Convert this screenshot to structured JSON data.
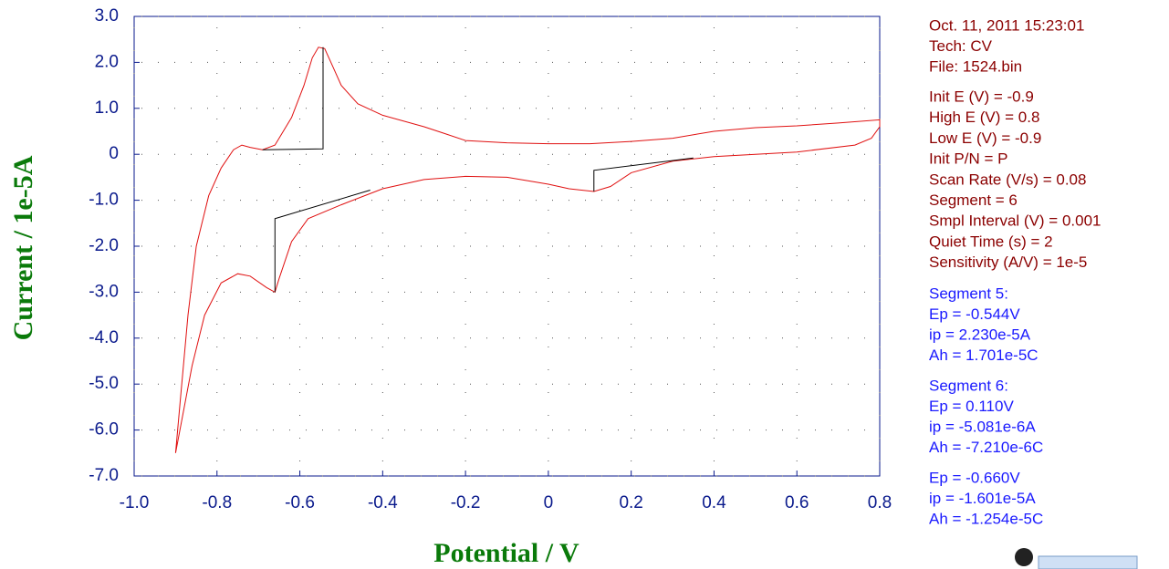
{
  "chart_data": {
    "type": "line",
    "x_label": "Potential / V",
    "y_label": "Current / 1e-5A",
    "xlim": [
      -1.0,
      0.8
    ],
    "ylim": [
      -7.0,
      3.0
    ],
    "xticks": [
      {
        "value": -1.0,
        "label": "-1.0"
      },
      {
        "value": -0.8,
        "label": "-0.8"
      },
      {
        "value": -0.6,
        "label": "-0.6"
      },
      {
        "value": -0.4,
        "label": "-0.4"
      },
      {
        "value": -0.2,
        "label": "-0.2"
      },
      0,
      {
        "value": 0.2,
        "label": "0.2"
      },
      {
        "value": 0.4,
        "label": "0.4"
      },
      {
        "value": 0.6,
        "label": "0.6"
      },
      {
        "value": 0.8,
        "label": "0.8"
      }
    ],
    "yticks": [
      {
        "value": 3.0,
        "label": "3.0"
      },
      {
        "value": 2.0,
        "label": "2.0"
      },
      {
        "value": 1.0,
        "label": "1.0"
      },
      0,
      {
        "value": -1.0,
        "label": "-1.0"
      },
      {
        "value": -2.0,
        "label": "-2.0"
      },
      {
        "value": -3.0,
        "label": "-3.0"
      },
      {
        "value": -4.0,
        "label": "-4.0"
      },
      {
        "value": -5.0,
        "label": "-5.0"
      },
      {
        "value": -6.0,
        "label": "-6.0"
      },
      {
        "value": -7.0,
        "label": "-7.0"
      }
    ],
    "grid": true,
    "series": [
      {
        "color": "#e01010",
        "x": [
          -0.9,
          -0.89,
          -0.87,
          -0.85,
          -0.82,
          -0.79,
          -0.76,
          -0.74,
          -0.72,
          -0.69,
          -0.66,
          -0.62,
          -0.59,
          -0.57,
          -0.555,
          -0.54,
          -0.52,
          -0.5,
          -0.46,
          -0.4,
          -0.3,
          -0.25,
          -0.2,
          -0.1,
          0,
          0.1,
          0.2,
          0.3,
          0.4,
          0.5,
          0.6,
          0.7,
          0.8,
          0.8,
          0.78,
          0.74,
          0.6,
          0.4,
          0.3,
          0.2,
          0.15,
          0.11,
          0.05,
          0,
          -0.1,
          -0.2,
          -0.3,
          -0.4,
          -0.5,
          -0.58,
          -0.62,
          -0.65,
          -0.66,
          -0.68,
          -0.72,
          -0.75,
          -0.79,
          -0.83,
          -0.86,
          -0.9
        ],
        "values": [
          -6.5,
          -5.5,
          -3.5,
          -2.0,
          -0.9,
          -0.3,
          0.1,
          0.2,
          0.15,
          0.1,
          0.2,
          0.8,
          1.5,
          2.1,
          2.33,
          2.3,
          1.9,
          1.5,
          1.1,
          0.85,
          0.6,
          0.45,
          0.3,
          0.25,
          0.23,
          0.23,
          0.28,
          0.35,
          0.5,
          0.58,
          0.62,
          0.68,
          0.75,
          0.6,
          0.35,
          0.2,
          0.05,
          -0.05,
          -0.15,
          -0.4,
          -0.7,
          -0.81,
          -0.75,
          -0.65,
          -0.5,
          -0.48,
          -0.55,
          -0.75,
          -1.1,
          -1.4,
          -1.9,
          -2.7,
          -3.0,
          -2.9,
          -2.65,
          -2.6,
          -2.8,
          -3.5,
          -4.6,
          -6.5
        ]
      },
      {
        "color": "#000000",
        "x": [
          -0.69,
          -0.544,
          -0.544
        ],
        "values": [
          0.1,
          0.12,
          2.33
        ]
      },
      {
        "color": "#000000",
        "x": [
          0.11,
          0.11,
          0.35
        ],
        "values": [
          -0.81,
          -0.35,
          -0.08
        ]
      },
      {
        "color": "#000000",
        "x": [
          -0.66,
          -0.66,
          -0.43
        ],
        "values": [
          -3.0,
          -1.4,
          -0.78
        ]
      }
    ]
  },
  "info": {
    "header": [
      "Oct. 11, 2011   15:23:01",
      "Tech: CV",
      "File: 1524.bin"
    ],
    "params": [
      "Init E (V) = -0.9",
      "High E (V) = 0.8",
      "Low E (V) = -0.9",
      "Init P/N = P",
      "Scan Rate (V/s) = 0.08",
      "Segment = 6",
      "Smpl Interval (V) = 0.001",
      "Quiet Time (s) = 2",
      "Sensitivity (A/V) = 1e-5"
    ],
    "results": [
      [
        "Segment 5:",
        "Ep = -0.544V",
        "ip = 2.230e-5A",
        "Ah = 1.701e-5C"
      ],
      [
        "Segment 6:",
        "Ep = 0.110V",
        "ip = -5.081e-6A",
        "Ah = -7.210e-6C"
      ],
      [
        "Ep = -0.660V",
        "ip = -1.601e-5A",
        "Ah = -1.254e-5C"
      ]
    ]
  }
}
